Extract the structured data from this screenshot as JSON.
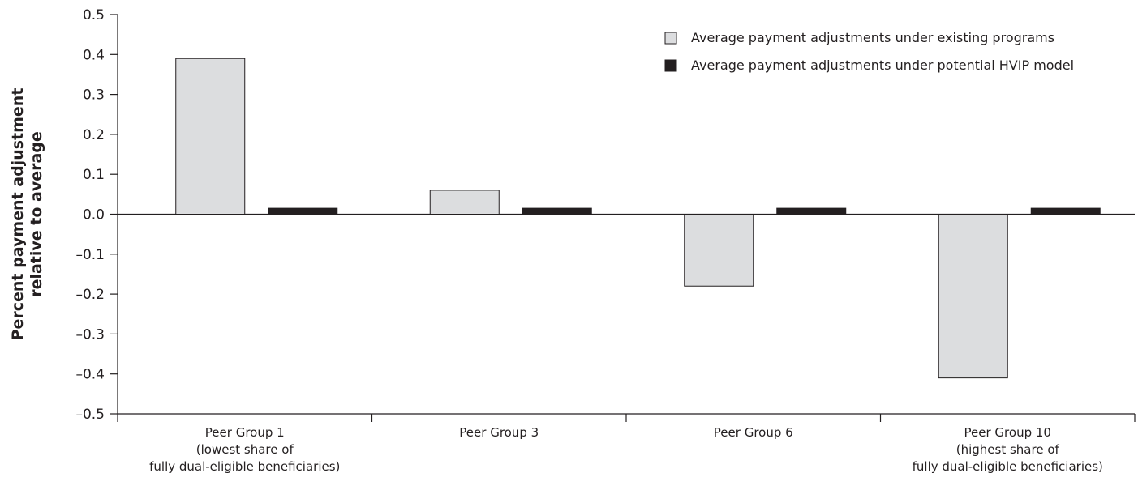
{
  "chart_data": {
    "type": "bar",
    "ylabel": "Percent payment adjustment relative to average",
    "ylabel_lines": [
      "Percent payment adjustment",
      "relative to average"
    ],
    "xlabel": "",
    "ylim": [
      -0.5,
      0.5
    ],
    "yticks": [
      0.5,
      0.4,
      0.3,
      0.2,
      0.1,
      0.0,
      -0.1,
      -0.2,
      -0.3,
      -0.4,
      -0.5
    ],
    "ytick_labels": [
      "0.5",
      "0.4",
      "0.3",
      "0.2",
      "0.1",
      "0.0",
      "–0.1",
      "–0.2",
      "–0.3",
      "–0.4",
      "–0.5"
    ],
    "grid": false,
    "legend_placement": "top-right",
    "categories": [
      [
        "Peer Group 1",
        "(lowest share of",
        "fully dual-eligible beneficiaries)"
      ],
      [
        "Peer Group 3"
      ],
      [
        "Peer Group 6"
      ],
      [
        "Peer Group 10",
        "(highest share of",
        "fully dual-eligible beneficiaries)"
      ]
    ],
    "series": [
      {
        "name": "Average payment adjustments under existing programs",
        "color": "#dcdddf",
        "values": [
          0.39,
          0.06,
          -0.18,
          -0.41
        ]
      },
      {
        "name": "Average payment adjustments under potential HVIP model",
        "color": "#231f20",
        "values": [
          0.015,
          0.015,
          0.015,
          0.015
        ]
      }
    ]
  }
}
